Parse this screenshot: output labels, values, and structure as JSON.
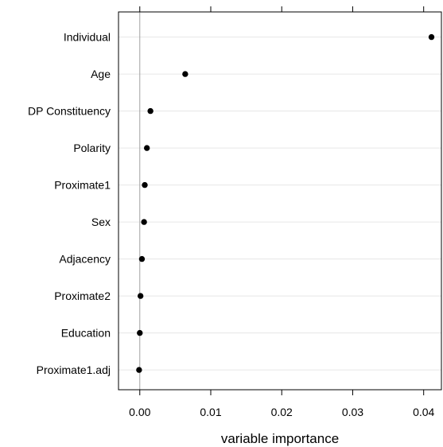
{
  "chart_data": {
    "type": "scatter",
    "subtype": "dot-plot",
    "title": "",
    "xlabel": "variable importance",
    "ylabel": "",
    "categories": [
      "Individual",
      "Age",
      "DP Constituency",
      "Polarity",
      "Proximate1",
      "Sex",
      "Adjacency",
      "Proximate2",
      "Education",
      "Proximate1.adj"
    ],
    "values": [
      0.0411,
      0.0064,
      0.0015,
      0.001,
      0.0007,
      0.0006,
      0.0003,
      0.0001,
      0.0,
      -0.0001
    ],
    "xlim": [
      -0.003,
      0.0425
    ],
    "xticks": [
      0.0,
      0.01,
      0.02,
      0.03,
      0.04
    ],
    "xtick_labels": [
      "0.00",
      "0.01",
      "0.02",
      "0.03",
      "0.04"
    ],
    "reference_line": 0,
    "grid": true,
    "colors": {
      "point": "#000000",
      "grid": "#e6e6e6",
      "reference": "#a0a0a0",
      "frame": "#000000"
    }
  }
}
